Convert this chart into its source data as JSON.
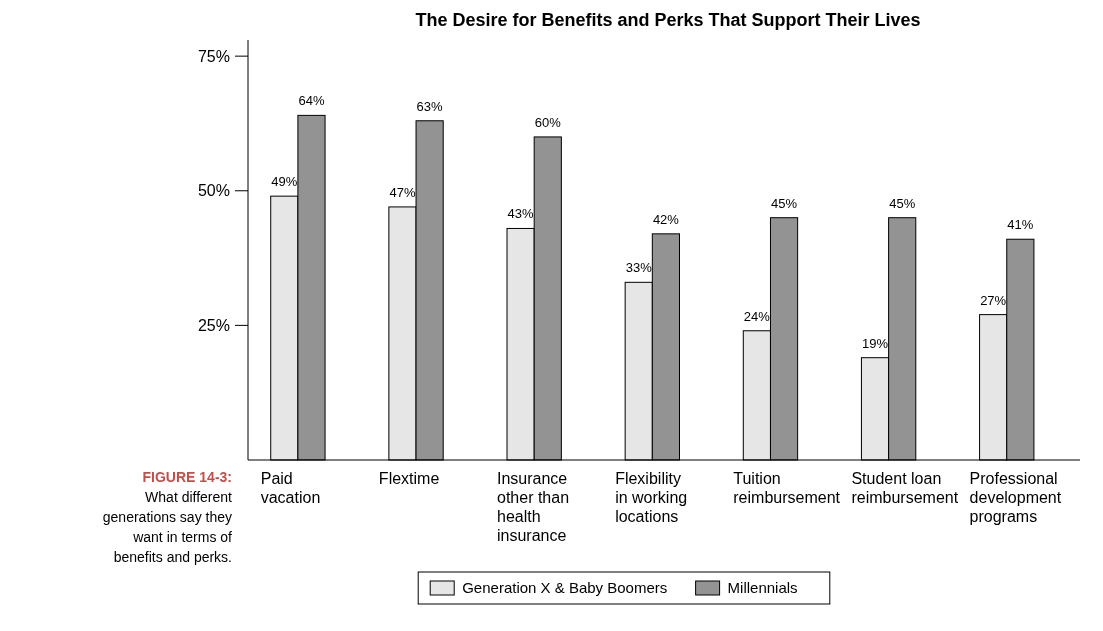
{
  "chart_data": {
    "type": "bar",
    "title": "The Desire for Benefits and Perks That Support Their Lives",
    "categories": [
      "Paid vacation",
      "Flextime",
      "Insurance other than health insurance",
      "Flexibility in working locations",
      "Tuition reimbursement",
      "Student loan reimbursement",
      "Professional development programs"
    ],
    "series": [
      {
        "name": "Generation X & Baby Boomers",
        "color": "#e6e6e6",
        "values": [
          49,
          47,
          43,
          33,
          24,
          19,
          27
        ]
      },
      {
        "name": "Millennials",
        "color": "#939393",
        "values": [
          64,
          63,
          60,
          42,
          45,
          45,
          41
        ]
      }
    ],
    "ylim": [
      0,
      78
    ],
    "yticks": [
      {
        "value": 25,
        "label": "25%"
      },
      {
        "value": 50,
        "label": "50%"
      },
      {
        "value": 75,
        "label": "75%"
      }
    ],
    "value_labels": [
      [
        "49%",
        "47%",
        "43%",
        "33%",
        "24%",
        "19%",
        "27%"
      ],
      [
        "64%",
        "63%",
        "60%",
        "42%",
        "45%",
        "45%",
        "41%"
      ]
    ],
    "legend": "bottom",
    "grid": false,
    "annotations": [
      "FIGURE 14-3:",
      "What different generations say they want in terms of benefits and perks."
    ]
  }
}
